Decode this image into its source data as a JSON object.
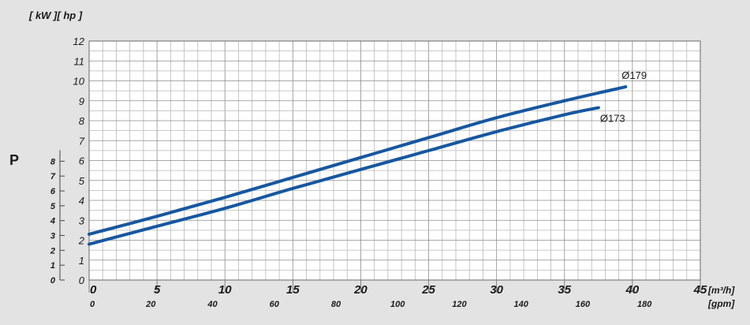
{
  "chart_data": {
    "type": "line",
    "units_label": "[ kW ][ hp ]",
    "ylabel": "P",
    "x_primary": {
      "unit": "[m³/h]",
      "ticks": [
        0,
        5,
        10,
        15,
        20,
        25,
        30,
        35,
        40,
        45
      ],
      "range": [
        0,
        45
      ]
    },
    "x_secondary": {
      "unit": "[gpm]",
      "ticks": [
        0,
        20,
        40,
        60,
        80,
        100,
        120,
        140,
        160,
        180
      ]
    },
    "y_primary": {
      "ticks": [
        0,
        1,
        2,
        3,
        4,
        5,
        6,
        7,
        8,
        9,
        10,
        11,
        12
      ],
      "range": [
        0,
        12
      ]
    },
    "y_secondary": {
      "ticks": [
        0,
        1,
        2,
        3,
        4,
        5,
        6,
        7,
        8
      ]
    },
    "grid": true,
    "series": [
      {
        "name": "Ø179",
        "color": "#1757a0",
        "points": [
          [
            0,
            2.3
          ],
          [
            5,
            3.2
          ],
          [
            10,
            4.15
          ],
          [
            15,
            5.15
          ],
          [
            20,
            6.15
          ],
          [
            25,
            7.15
          ],
          [
            30,
            8.15
          ],
          [
            35,
            9.0
          ],
          [
            39.5,
            9.7
          ]
        ]
      },
      {
        "name": "Ø173",
        "color": "#1757a0",
        "points": [
          [
            0,
            1.8
          ],
          [
            5,
            2.7
          ],
          [
            10,
            3.6
          ],
          [
            15,
            4.6
          ],
          [
            20,
            5.55
          ],
          [
            25,
            6.5
          ],
          [
            30,
            7.45
          ],
          [
            35,
            8.3
          ],
          [
            37.5,
            8.65
          ]
        ]
      }
    ]
  }
}
